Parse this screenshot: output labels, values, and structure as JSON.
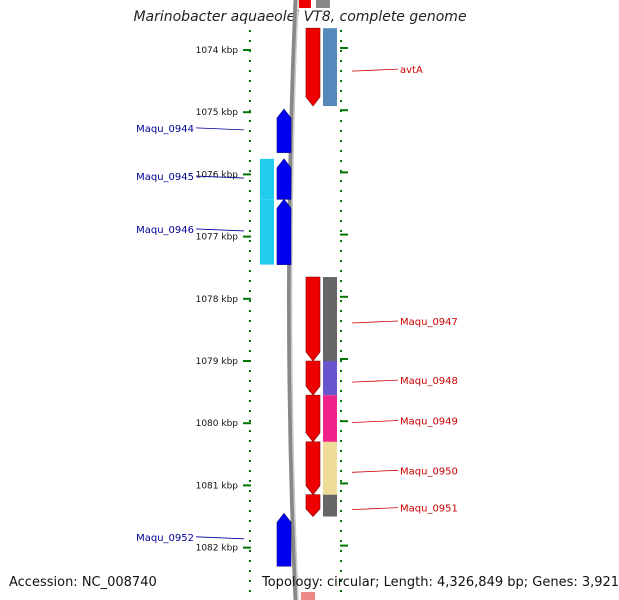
{
  "map": {
    "title": "Marinobacter aquaeolei VT8, complete genome",
    "accession_label": "Accession: NC_008740",
    "topology_label": "Topology: circular; Length: 4,326,849 bp; Genes: 3,921"
  },
  "ruler": {
    "ticks": [
      {
        "label": "1074 kbp",
        "kbp": 1074
      },
      {
        "label": "1075 kbp",
        "kbp": 1075
      },
      {
        "label": "1076 kbp",
        "kbp": 1076
      },
      {
        "label": "1077 kbp",
        "kbp": 1077
      },
      {
        "label": "1078 kbp",
        "kbp": 1078
      },
      {
        "label": "1079 kbp",
        "kbp": 1079
      },
      {
        "label": "1080 kbp",
        "kbp": 1080
      },
      {
        "label": "1081 kbp",
        "kbp": 1081
      },
      {
        "label": "1082 kbp",
        "kbp": 1082
      }
    ]
  },
  "colors": {
    "reverse_strand": "#0000ee",
    "reverse_cog": "#22ccee",
    "forward_strand": "#ee0000",
    "backbone": "#888888",
    "tick": "#007700",
    "label_reverse": "#000099",
    "label_forward": "#cc0000"
  },
  "features": [
    {
      "name": "avtA",
      "strand": "forward",
      "start_kbp": 1073.65,
      "end_kbp": 1074.9,
      "cog_color": "#5588bb"
    },
    {
      "name": "Maqu_0944",
      "strand": "reverse",
      "start_kbp": 1074.95,
      "end_kbp": 1075.65,
      "cog_color": ""
    },
    {
      "name": "Maqu_0945",
      "strand": "reverse",
      "start_kbp": 1075.75,
      "end_kbp": 1076.4,
      "cog_color": "#22ccee"
    },
    {
      "name": "Maqu_0946",
      "strand": "reverse",
      "start_kbp": 1076.4,
      "end_kbp": 1077.45,
      "cog_color": "#22ccee"
    },
    {
      "name": "Maqu_0947",
      "strand": "forward",
      "start_kbp": 1077.65,
      "end_kbp": 1079.0,
      "cog_color": "#666666"
    },
    {
      "name": "Maqu_0948",
      "strand": "forward",
      "start_kbp": 1079.0,
      "end_kbp": 1079.55,
      "cog_color": "#6655cc"
    },
    {
      "name": "Maqu_0949",
      "strand": "forward",
      "start_kbp": 1079.55,
      "end_kbp": 1080.3,
      "cog_color": "#ee2288"
    },
    {
      "name": "Maqu_0950",
      "strand": "forward",
      "start_kbp": 1080.3,
      "end_kbp": 1081.15,
      "cog_color": "#eedd99"
    },
    {
      "name": "Maqu_0951",
      "strand": "forward",
      "start_kbp": 1081.15,
      "end_kbp": 1081.5,
      "cog_color": "#666666"
    },
    {
      "name": "Maqu_0952",
      "strand": "reverse",
      "start_kbp": 1081.45,
      "end_kbp": 1082.3,
      "cog_color": ""
    }
  ]
}
